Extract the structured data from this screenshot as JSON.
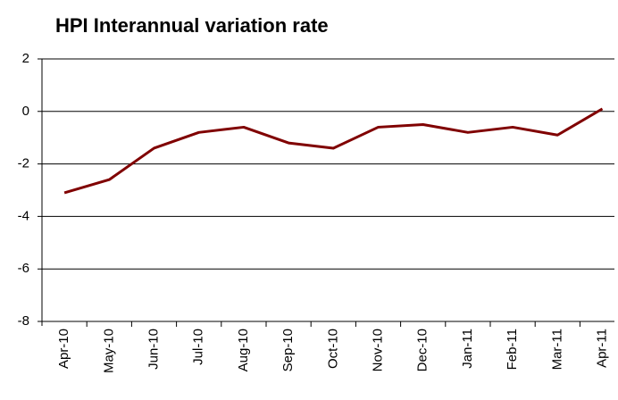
{
  "chart_data": {
    "type": "line",
    "title": "HPI Interannual variation rate",
    "categories": [
      "Apr-10",
      "May-10",
      "Jun-10",
      "Jul-10",
      "Aug-10",
      "Sep-10",
      "Oct-10",
      "Nov-10",
      "Dec-10",
      "Jan-11",
      "Feb-11",
      "Mar-11",
      "Apr-11"
    ],
    "series": [
      {
        "name": "HPI",
        "color": "#800000",
        "values": [
          -3.1,
          -2.6,
          -1.4,
          -0.8,
          -0.6,
          -1.2,
          -1.4,
          -0.6,
          -0.5,
          -0.8,
          -0.6,
          -0.9,
          0.1
        ]
      }
    ],
    "ylim": [
      -8,
      2
    ],
    "yticks": [
      -8,
      -6,
      -4,
      -2,
      0,
      2
    ],
    "grid": true
  }
}
